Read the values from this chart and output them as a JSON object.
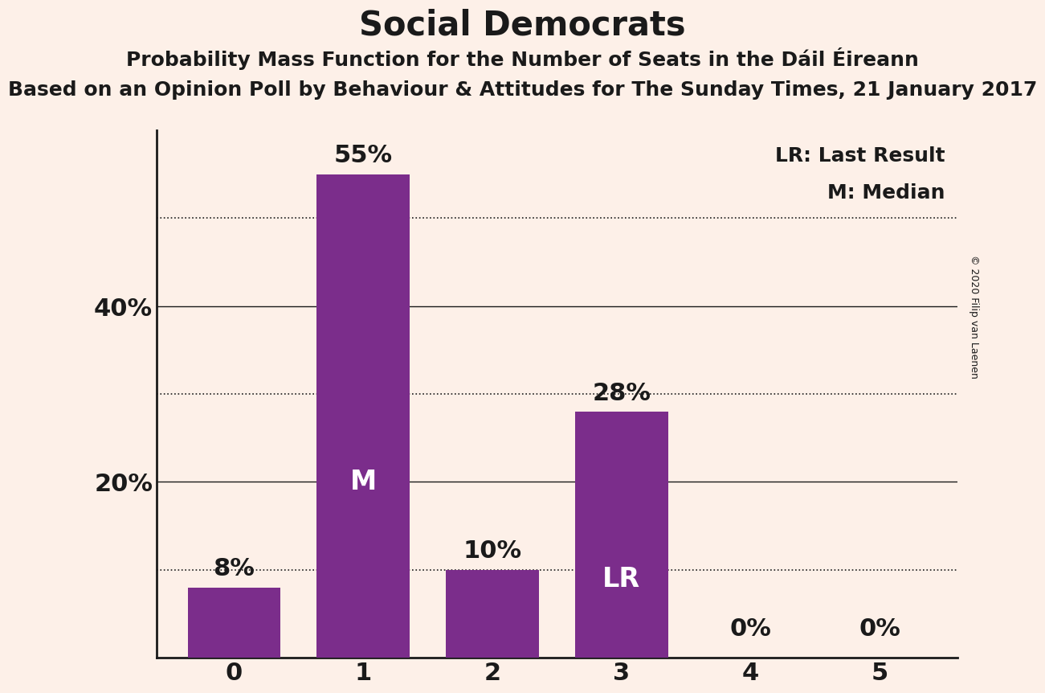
{
  "title": "Social Democrats",
  "subtitle1": "Probability Mass Function for the Number of Seats in the Dáil Éireann",
  "subtitle2": "Based on an Opinion Poll by Behaviour & Attitudes for The Sunday Times, 21 January 2017",
  "copyright": "© 2020 Filip van Laenen",
  "categories": [
    0,
    1,
    2,
    3,
    4,
    5
  ],
  "values": [
    8,
    55,
    10,
    28,
    0,
    0
  ],
  "bar_color": "#7b2d8b",
  "background_color": "#fdf0e8",
  "solid_lines": [
    20,
    40
  ],
  "dotted_lines": [
    10,
    30,
    50
  ],
  "legend_lr": "LR: Last Result",
  "legend_m": "M: Median",
  "ylim": [
    0,
    60
  ],
  "title_fontsize": 30,
  "subtitle1_fontsize": 18,
  "subtitle2_fontsize": 18,
  "tick_fontsize": 22,
  "annotation_fontsize": 22,
  "inside_label_fontsize": 22,
  "legend_fontsize": 18,
  "copyright_fontsize": 9,
  "bar_width": 0.72
}
